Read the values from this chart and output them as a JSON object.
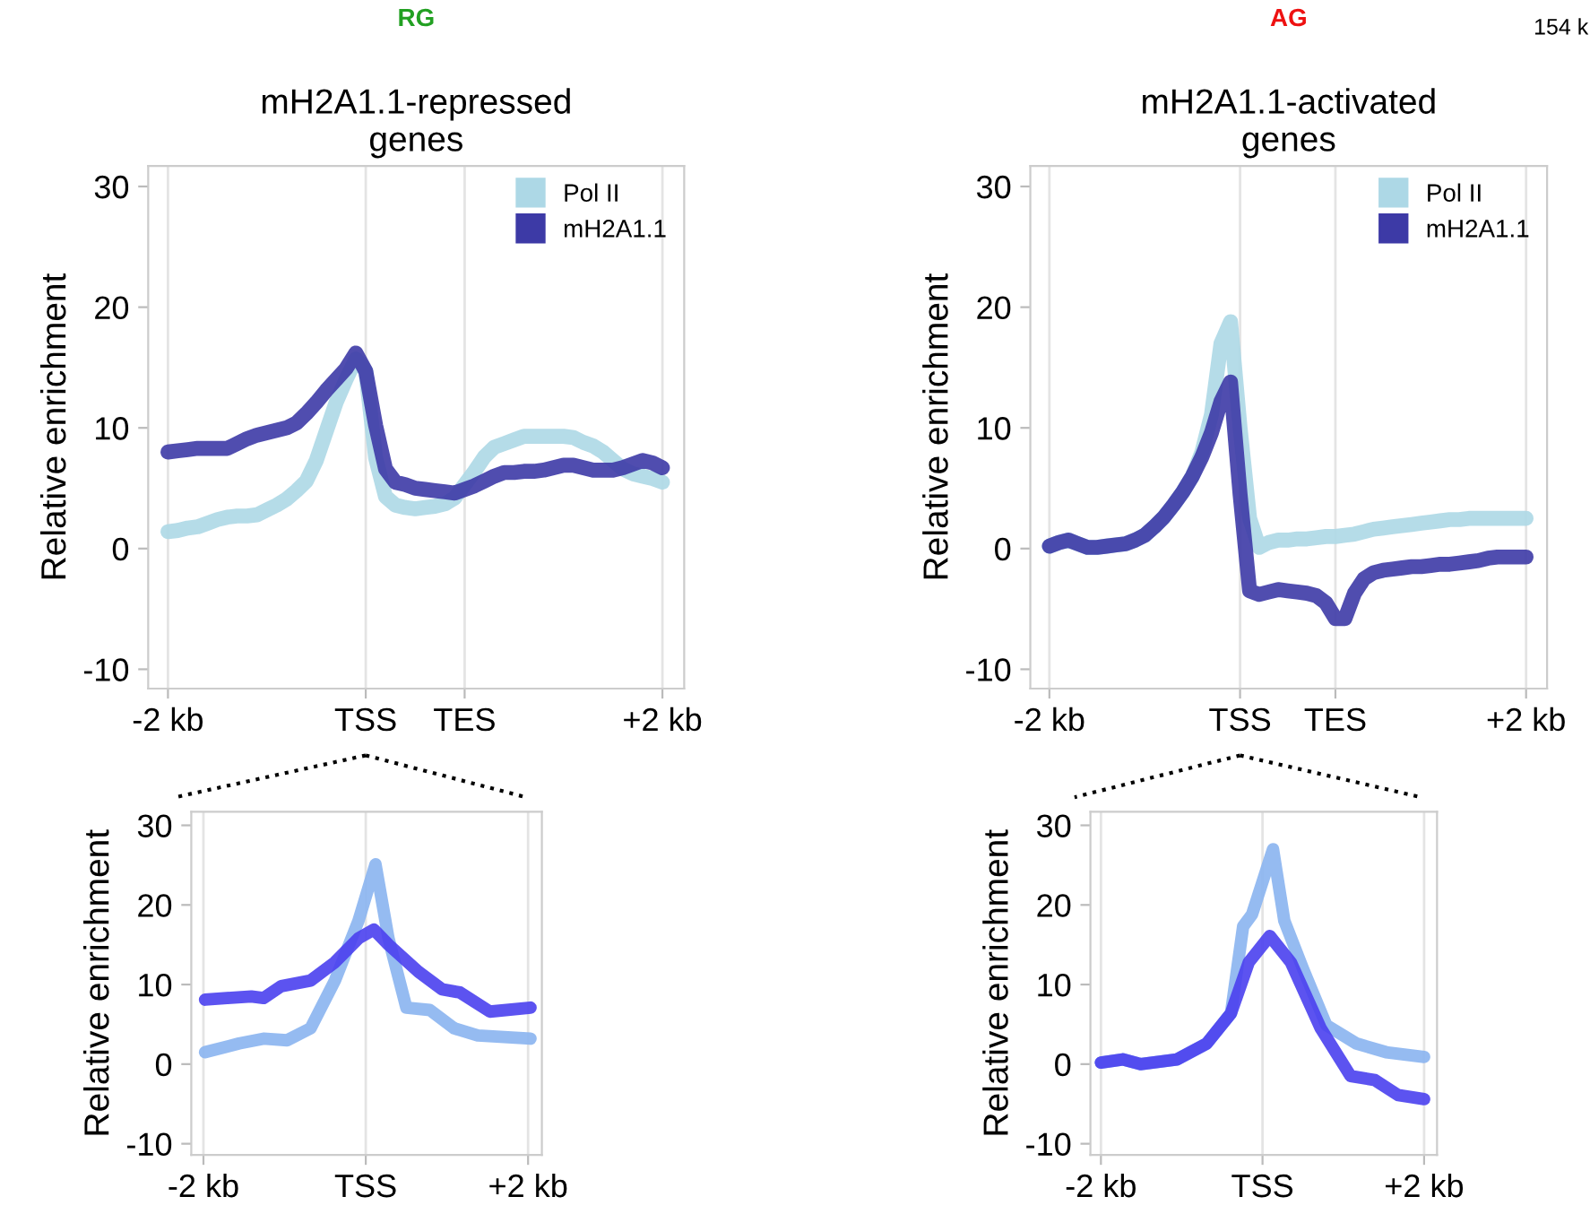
{
  "chart_data": [
    {
      "type": "line",
      "title": "mH2A1.1-repressed\ngenes",
      "annotations": [
        "RG"
      ],
      "ylabel": "Relative enrichment",
      "ylim": [
        -11.6,
        31.7
      ],
      "yticks": [
        -10,
        0,
        10,
        20,
        30
      ],
      "grid": "x",
      "legend": "top right",
      "marker": "none",
      "line_style": "solid",
      "categories": [
        "-2 kb",
        null,
        null,
        null,
        null,
        null,
        null,
        null,
        null,
        null,
        null,
        null,
        null,
        null,
        null,
        null,
        null,
        null,
        null,
        null,
        "TSS",
        null,
        null,
        null,
        null,
        null,
        null,
        null,
        null,
        null,
        "TES",
        null,
        null,
        null,
        null,
        null,
        null,
        null,
        null,
        null,
        null,
        null,
        null,
        null,
        null,
        null,
        null,
        null,
        null,
        null,
        "+2 kb"
      ],
      "series": [
        {
          "name": "Pol II",
          "color": "#add8e6",
          "values": [
            1.4,
            1.5,
            1.7,
            1.8,
            2.1,
            2.4,
            2.6,
            2.7,
            2.7,
            2.8,
            3.2,
            3.6,
            4.1,
            4.8,
            5.6,
            7.3,
            9.7,
            12.1,
            14.0,
            15.7,
            14.7,
            7.5,
            4.3,
            3.6,
            3.4,
            3.3,
            3.4,
            3.5,
            3.7,
            4.2,
            5.3,
            6.4,
            7.6,
            8.4,
            8.7,
            9.0,
            9.3,
            9.3,
            9.3,
            9.3,
            9.3,
            9.2,
            8.8,
            8.5,
            8.0,
            7.3,
            6.6,
            6.2,
            6.0,
            5.8,
            5.5
          ]
        },
        {
          "name": "mH2A1.1",
          "color": "#3d3aa6",
          "values": [
            8.0,
            8.1,
            8.2,
            8.3,
            8.3,
            8.3,
            8.3,
            8.7,
            9.1,
            9.4,
            9.6,
            9.8,
            10.0,
            10.4,
            11.2,
            12.1,
            13.1,
            14.0,
            14.9,
            16.2,
            14.7,
            10.2,
            6.6,
            5.5,
            5.3,
            5.0,
            4.9,
            4.8,
            4.7,
            4.6,
            4.9,
            5.2,
            5.6,
            6.0,
            6.3,
            6.3,
            6.4,
            6.4,
            6.5,
            6.7,
            6.9,
            6.9,
            6.7,
            6.5,
            6.5,
            6.5,
            6.7,
            7.0,
            7.3,
            7.1,
            6.7
          ]
        }
      ]
    },
    {
      "type": "line",
      "title": "mH2A1.1-activated\ngenes",
      "annotations": [
        "AG",
        "154 k"
      ],
      "ylabel": "Relative enrichment",
      "ylim": [
        -11.6,
        31.7
      ],
      "yticks": [
        -10,
        0,
        10,
        20,
        30
      ],
      "grid": "x",
      "legend": "top right",
      "marker": "none",
      "line_style": "solid",
      "categories": [
        "-2 kb",
        null,
        null,
        null,
        null,
        null,
        null,
        null,
        null,
        null,
        null,
        null,
        null,
        null,
        null,
        null,
        null,
        null,
        null,
        null,
        "TSS",
        null,
        null,
        null,
        null,
        null,
        null,
        null,
        null,
        null,
        "TES",
        null,
        null,
        null,
        null,
        null,
        null,
        null,
        null,
        null,
        null,
        null,
        null,
        null,
        null,
        null,
        null,
        null,
        null,
        null,
        "+2 kb"
      ],
      "series": [
        {
          "name": "Pol II",
          "color": "#add8e6",
          "values": [
            0.2,
            0.5,
            0.7,
            0.4,
            0.1,
            0.1,
            0.2,
            0.3,
            0.4,
            0.7,
            1.1,
            1.8,
            2.6,
            3.6,
            4.7,
            6.0,
            8.0,
            11.1,
            17.0,
            18.8,
            10.0,
            2.5,
            0.1,
            0.5,
            0.7,
            0.7,
            0.8,
            0.8,
            0.9,
            1.0,
            1.0,
            1.1,
            1.2,
            1.4,
            1.6,
            1.7,
            1.8,
            1.9,
            2.0,
            2.1,
            2.2,
            2.3,
            2.4,
            2.4,
            2.5,
            2.5,
            2.5,
            2.5,
            2.5,
            2.5,
            2.5
          ]
        },
        {
          "name": "mH2A1.1",
          "color": "#3d3aa6",
          "values": [
            0.2,
            0.5,
            0.7,
            0.4,
            0.1,
            0.1,
            0.2,
            0.3,
            0.4,
            0.7,
            1.1,
            1.8,
            2.6,
            3.6,
            4.7,
            6.0,
            7.6,
            9.6,
            12.2,
            13.8,
            4.5,
            -3.5,
            -3.8,
            -3.6,
            -3.4,
            -3.5,
            -3.6,
            -3.7,
            -3.9,
            -4.5,
            -5.8,
            -5.8,
            -3.7,
            -2.5,
            -2.0,
            -1.8,
            -1.7,
            -1.6,
            -1.5,
            -1.5,
            -1.4,
            -1.3,
            -1.3,
            -1.2,
            -1.1,
            -1.0,
            -0.8,
            -0.7,
            -0.7,
            -0.7,
            -0.7
          ]
        }
      ]
    },
    {
      "type": "line",
      "ylabel": "Relative enrichment",
      "xlim": [
        -2.15,
        2.17
      ],
      "ylim": [
        -11.4,
        31.7
      ],
      "xticks": [
        {
          "value": -2,
          "label": "-2 kb"
        },
        {
          "value": 0,
          "label": "TSS"
        },
        {
          "value": 2,
          "label": "+2 kb"
        }
      ],
      "yticks": [
        -10,
        0,
        10,
        20,
        30
      ],
      "grid": "x",
      "marker": "none",
      "line_style": "solid",
      "series": [
        {
          "color": "#8ab4f0",
          "x": [
            -1.98,
            -1.56,
            -1.26,
            -0.97,
            -0.68,
            -0.38,
            -0.09,
            0.12,
            0.28,
            0.5,
            0.79,
            1.09,
            1.38,
            2.03
          ],
          "values": [
            1.5,
            2.6,
            3.2,
            3.0,
            4.5,
            10.5,
            18.0,
            25.1,
            15.8,
            7.1,
            6.8,
            4.5,
            3.6,
            3.2
          ]
        },
        {
          "color": "#4a40ee",
          "x": [
            -1.98,
            -1.71,
            -1.41,
            -1.26,
            -1.04,
            -0.68,
            -0.38,
            -0.09,
            0.1,
            0.28,
            0.65,
            0.94,
            1.16,
            1.53,
            2.03
          ],
          "values": [
            8.1,
            8.3,
            8.5,
            8.3,
            9.8,
            10.5,
            12.8,
            15.8,
            16.9,
            15.0,
            11.6,
            9.4,
            9.0,
            6.6,
            7.1
          ]
        }
      ]
    },
    {
      "type": "line",
      "ylabel": "Relative enrichment",
      "xlim": [
        -2.13,
        2.16
      ],
      "ylim": [
        -11.4,
        31.7
      ],
      "xticks": [
        {
          "value": -2,
          "label": "-2 kb"
        },
        {
          "value": 0,
          "label": "TSS"
        },
        {
          "value": 2,
          "label": "+2 kb"
        }
      ],
      "yticks": [
        -10,
        0,
        10,
        20,
        30
      ],
      "grid": "x",
      "marker": "none",
      "line_style": "solid",
      "series": [
        {
          "color": "#8ab4f0",
          "x": [
            -2,
            -1.73,
            -1.51,
            -1.06,
            -0.69,
            -0.39,
            -0.24,
            -0.13,
            0.13,
            0.27,
            0.5,
            0.79,
            1.16,
            1.53,
            2.0
          ],
          "values": [
            0.2,
            0.6,
            0,
            0.6,
            2.6,
            6.4,
            17.3,
            18.8,
            27.0,
            18.0,
            12.0,
            4.9,
            2.6,
            1.5,
            0.9
          ]
        },
        {
          "color": "#4a40ee",
          "x": [
            -2,
            -1.73,
            -1.51,
            -1.06,
            -0.69,
            -0.39,
            -0.17,
            0.09,
            0.35,
            0.72,
            1.09,
            1.39,
            1.68,
            2.0
          ],
          "values": [
            0.2,
            0.6,
            0,
            0.6,
            2.6,
            6.4,
            12.8,
            16.1,
            12.8,
            4.5,
            -1.5,
            -2.0,
            -3.9,
            -4.4
          ]
        }
      ]
    }
  ]
}
